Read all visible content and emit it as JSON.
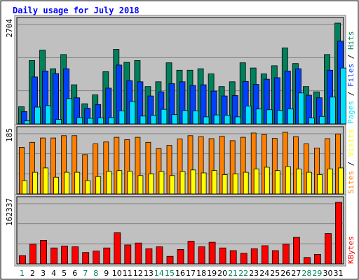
{
  "title": "Daily usage for July 2018",
  "colors": {
    "hits": "#00805c",
    "files": "#0040ff",
    "pages": "#00e0ff",
    "visits": "#ffff00",
    "sites": "#ff8000",
    "kbytes": "#ff0000",
    "weekday_label": "#000000",
    "weekend_label": "#00805c",
    "panel_bg": "#c0c0c0",
    "frame_bg": "#d8d8d8",
    "title_color": "#0000ff"
  },
  "chart_data": [
    {
      "type": "bar",
      "panel": "hits-files-pages",
      "scale_label": "2704",
      "ymax": 2704,
      "legend": [
        "Pages",
        "/",
        "Files",
        "/",
        "Hits"
      ],
      "categories": [
        "1",
        "2",
        "3",
        "4",
        "5",
        "6",
        "7",
        "8",
        "9",
        "10",
        "11",
        "12",
        "13",
        "14",
        "15",
        "16",
        "17",
        "18",
        "19",
        "20",
        "21",
        "22",
        "23",
        "24",
        "25",
        "26",
        "27",
        "28",
        "29",
        "30",
        "31"
      ],
      "series": [
        {
          "name": "Hits",
          "values": [
            460,
            1700,
            1980,
            1480,
            1860,
            1050,
            540,
            780,
            1400,
            2000,
            1650,
            1700,
            1000,
            1130,
            1640,
            1440,
            1440,
            1480,
            1340,
            1000,
            1130,
            1640,
            1500,
            1340,
            1560,
            2040,
            1620,
            1000,
            860,
            1860,
            2704
          ]
        },
        {
          "name": "Files",
          "values": [
            330,
            1260,
            1420,
            1350,
            1480,
            700,
            420,
            520,
            960,
            1580,
            1160,
            1130,
            750,
            860,
            1080,
            1130,
            1030,
            1050,
            880,
            750,
            760,
            1140,
            1060,
            1200,
            1240,
            1420,
            1480,
            770,
            700,
            1440,
            2220
          ]
        },
        {
          "name": "Pages",
          "values": [
            80,
            450,
            490,
            120,
            680,
            170,
            150,
            160,
            170,
            350,
            600,
            210,
            230,
            390,
            250,
            360,
            350,
            190,
            240,
            230,
            190,
            480,
            400,
            380,
            360,
            400,
            830,
            160,
            200,
            720,
            1500
          ]
        }
      ]
    },
    {
      "type": "bar",
      "panel": "sites-visits",
      "scale_label": "185",
      "ymax": 185,
      "legend": [
        "Sites",
        "/",
        "Visits"
      ],
      "categories": [
        "1",
        "2",
        "3",
        "4",
        "5",
        "6",
        "7",
        "8",
        "9",
        "10",
        "11",
        "12",
        "13",
        "14",
        "15",
        "16",
        "17",
        "18",
        "19",
        "20",
        "21",
        "22",
        "23",
        "24",
        "25",
        "26",
        "27",
        "28",
        "29",
        "30",
        "31"
      ],
      "series": [
        {
          "name": "Sites",
          "values": [
            140,
            155,
            168,
            168,
            175,
            175,
            118,
            150,
            156,
            170,
            163,
            170,
            155,
            136,
            146,
            165,
            175,
            172,
            166,
            173,
            160,
            170,
            183,
            178,
            167,
            185,
            172,
            150,
            138,
            166,
            180
          ]
        },
        {
          "name": "Visits",
          "values": [
            40,
            65,
            78,
            50,
            65,
            65,
            40,
            52,
            68,
            70,
            68,
            55,
            60,
            67,
            55,
            67,
            72,
            63,
            70,
            58,
            60,
            65,
            75,
            80,
            70,
            82,
            75,
            65,
            58,
            75,
            78
          ]
        }
      ]
    },
    {
      "type": "bar",
      "panel": "kbytes",
      "scale_label": "162337",
      "ymax": 162337,
      "legend": [
        "KBytes"
      ],
      "categories": [
        "1",
        "2",
        "3",
        "4",
        "5",
        "6",
        "7",
        "8",
        "9",
        "10",
        "11",
        "12",
        "13",
        "14",
        "15",
        "16",
        "17",
        "18",
        "19",
        "20",
        "21",
        "22",
        "23",
        "24",
        "25",
        "26",
        "27",
        "28",
        "29",
        "30",
        "31"
      ],
      "series": [
        {
          "name": "KBytes",
          "values": [
            22000,
            52000,
            62000,
            42000,
            47000,
            45000,
            30000,
            34000,
            42000,
            82000,
            50000,
            55000,
            40000,
            45000,
            20000,
            38000,
            60000,
            45000,
            57000,
            42000,
            35000,
            28000,
            40000,
            48000,
            35000,
            52000,
            70000,
            17000,
            25000,
            80000,
            162337
          ]
        }
      ]
    }
  ],
  "day_labels": [
    {
      "label": "1",
      "weekend": true
    },
    {
      "label": "2",
      "weekend": false
    },
    {
      "label": "3",
      "weekend": false
    },
    {
      "label": "4",
      "weekend": false
    },
    {
      "label": "5",
      "weekend": false
    },
    {
      "label": "6",
      "weekend": false
    },
    {
      "label": "7",
      "weekend": true
    },
    {
      "label": "8",
      "weekend": true
    },
    {
      "label": "9",
      "weekend": false
    },
    {
      "label": "10",
      "weekend": false
    },
    {
      "label": "11",
      "weekend": false
    },
    {
      "label": "12",
      "weekend": false
    },
    {
      "label": "13",
      "weekend": false
    },
    {
      "label": "14",
      "weekend": true
    },
    {
      "label": "15",
      "weekend": true
    },
    {
      "label": "16",
      "weekend": false
    },
    {
      "label": "17",
      "weekend": false
    },
    {
      "label": "18",
      "weekend": false
    },
    {
      "label": "19",
      "weekend": false
    },
    {
      "label": "20",
      "weekend": false
    },
    {
      "label": "21",
      "weekend": true
    },
    {
      "label": "22",
      "weekend": true
    },
    {
      "label": "23",
      "weekend": false
    },
    {
      "label": "24",
      "weekend": false
    },
    {
      "label": "25",
      "weekend": false
    },
    {
      "label": "26",
      "weekend": false
    },
    {
      "label": "27",
      "weekend": false
    },
    {
      "label": "28",
      "weekend": true
    },
    {
      "label": "29",
      "weekend": true
    },
    {
      "label": "30",
      "weekend": false
    },
    {
      "label": "31",
      "weekend": false
    }
  ]
}
